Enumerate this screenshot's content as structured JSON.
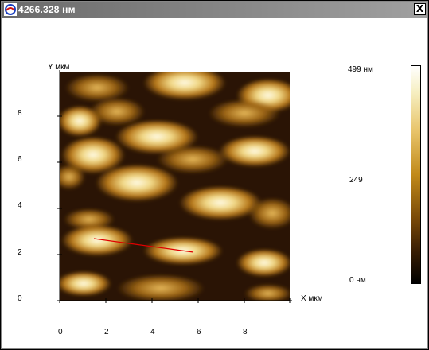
{
  "window": {
    "title": "4266.328 нм",
    "close_label": "X"
  },
  "image": {
    "y_axis_label": "Y мкм",
    "x_axis_label": "X мкм",
    "y_ticks": [
      "8",
      "6",
      "4",
      "2",
      "0"
    ],
    "x_ticks": [
      "0",
      "2",
      "4",
      "6",
      "8"
    ]
  },
  "colorbar": {
    "max_label": "499 нм",
    "mid_label": "249",
    "min_label": "0 нм"
  },
  "colors": {
    "titlebar": "#7a7a7a",
    "profile_line": "#e00000",
    "height_high": "#fff8d8",
    "height_mid": "#c8891c",
    "height_low": "#1a0c02"
  }
}
